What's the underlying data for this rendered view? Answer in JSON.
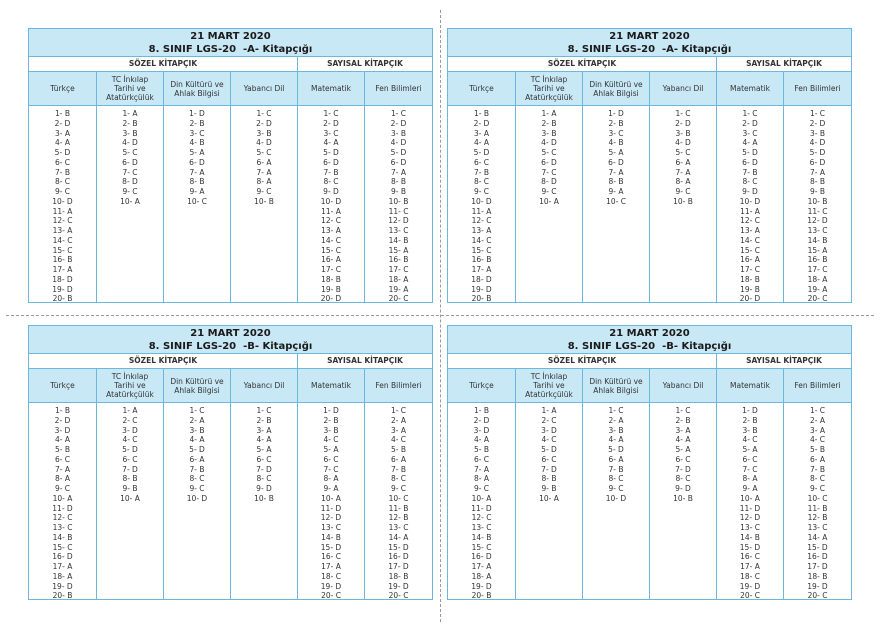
{
  "panels": [
    {
      "date": "21 MART 2020",
      "title": "8. SINIF LGS-20  -A- Kitapçığı",
      "sections": [
        "SÖZEL KİTAPÇIK",
        "SAYISAL KİTAPÇIK"
      ],
      "columns": [
        {
          "header": "Türkçe",
          "answers": [
            "1- B",
            "2- D",
            "3- A",
            "4- A",
            "5- D",
            "6- C",
            "7- B",
            "8- C",
            "9- C",
            "10- D",
            "11- A",
            "12- C",
            "13- A",
            "14- C",
            "15- C",
            "16- B",
            "17- A",
            "18- D",
            "19- D",
            "20- B"
          ]
        },
        {
          "header": "TC İnkılap Tarihi ve Atatürkçülük",
          "answers": [
            "1- A",
            "2- B",
            "3- B",
            "4- D",
            "5- C",
            "6- D",
            "7- C",
            "8- D",
            "9- C",
            "10- A"
          ]
        },
        {
          "header": "Din Kültürü ve Ahlak Bilgisi",
          "answers": [
            "1- D",
            "2- B",
            "3- C",
            "4- B",
            "5- A",
            "6- D",
            "7- A",
            "8- B",
            "9- A",
            "10- C"
          ]
        },
        {
          "header": "Yabancı Dil",
          "answers": [
            "1- C",
            "2- D",
            "3- B",
            "4- D",
            "5- C",
            "6- A",
            "7- A",
            "8- A",
            "9- C",
            "10- B"
          ]
        },
        {
          "header": "Matematik",
          "answers": [
            "1- C",
            "2- D",
            "3- C",
            "4- A",
            "5- D",
            "6- D",
            "7- B",
            "8- C",
            "9- D",
            "10- D",
            "11- A",
            "12- C",
            "13- A",
            "14- C",
            "15- C",
            "16- A",
            "17- C",
            "18- B",
            "19- B",
            "20- D"
          ]
        },
        {
          "header": "Fen Bilimleri",
          "answers": [
            "1- C",
            "2- D",
            "3- B",
            "4- D",
            "5- D",
            "6- D",
            "7- A",
            "8- B",
            "9- B",
            "10- B",
            "11- C",
            "12- D",
            "13- C",
            "14- B",
            "15- A",
            "16- B",
            "17- C",
            "18- A",
            "19- A",
            "20- C"
          ]
        }
      ]
    },
    {
      "date": "21 MART 2020",
      "title": "8. SINIF LGS-20  -A- Kitapçığı",
      "sections": [
        "SÖZEL KİTAPÇIK",
        "SAYISAL KİTAPÇIK"
      ],
      "columns": [
        {
          "header": "Türkçe",
          "answers": [
            "1- B",
            "2- D",
            "3- A",
            "4- A",
            "5- D",
            "6- C",
            "7- B",
            "8- C",
            "9- C",
            "10- D",
            "11- A",
            "12- C",
            "13- A",
            "14- C",
            "15- C",
            "16- B",
            "17- A",
            "18- D",
            "19- D",
            "20- B"
          ]
        },
        {
          "header": "TC İnkılap Tarihi ve Atatürkçülük",
          "answers": [
            "1- A",
            "2- B",
            "3- B",
            "4- D",
            "5- C",
            "6- D",
            "7- C",
            "8- D",
            "9- C",
            "10- A"
          ]
        },
        {
          "header": "Din Kültürü ve Ahlak Bilgisi",
          "answers": [
            "1- D",
            "2- B",
            "3- C",
            "4- B",
            "5- A",
            "6- D",
            "7- A",
            "8- B",
            "9- A",
            "10- C"
          ]
        },
        {
          "header": "Yabancı Dil",
          "answers": [
            "1- C",
            "2- D",
            "3- B",
            "4- D",
            "5- C",
            "6- A",
            "7- A",
            "8- A",
            "9- C",
            "10- B"
          ]
        },
        {
          "header": "Matematik",
          "answers": [
            "1- C",
            "2- D",
            "3- C",
            "4- A",
            "5- D",
            "6- D",
            "7- B",
            "8- C",
            "9- D",
            "10- D",
            "11- A",
            "12- C",
            "13- A",
            "14- C",
            "15- C",
            "16- A",
            "17- C",
            "18- B",
            "19- B",
            "20- D"
          ]
        },
        {
          "header": "Fen Bilimleri",
          "answers": [
            "1- C",
            "2- D",
            "3- B",
            "4- D",
            "5- D",
            "6- D",
            "7- A",
            "8- B",
            "9- B",
            "10- B",
            "11- C",
            "12- D",
            "13- C",
            "14- B",
            "15- A",
            "16- B",
            "17- C",
            "18- A",
            "19- A",
            "20- C"
          ]
        }
      ]
    },
    {
      "date": "21 MART 2020",
      "title": "8. SINIF LGS-20  -B- Kitapçığı",
      "sections": [
        "SÖZEL KİTAPÇIK",
        "SAYISAL KİTAPÇIK"
      ],
      "columns": [
        {
          "header": "Türkçe",
          "answers": [
            "1- B",
            "2- D",
            "3- D",
            "4- A",
            "5- B",
            "6- C",
            "7- A",
            "8- A",
            "9- C",
            "10- A",
            "11- D",
            "12- C",
            "13- C",
            "14- B",
            "15- C",
            "16- D",
            "17- A",
            "18- A",
            "19- D",
            "20- B"
          ]
        },
        {
          "header": "TC İnkılap Tarihi ve Atatürkçülük",
          "answers": [
            "1- A",
            "2- C",
            "3- D",
            "4- C",
            "5- D",
            "6- C",
            "7- D",
            "8- B",
            "9- B",
            "10- A"
          ]
        },
        {
          "header": "Din Kültürü ve Ahlak Bilgisi",
          "answers": [
            "1- C",
            "2- A",
            "3- B",
            "4- A",
            "5- D",
            "6- A",
            "7- B",
            "8- C",
            "9- C",
            "10- D"
          ]
        },
        {
          "header": "Yabancı Dil",
          "answers": [
            "1- C",
            "2- B",
            "3- A",
            "4- A",
            "5- A",
            "6- C",
            "7- D",
            "8- C",
            "9- D",
            "10- B"
          ]
        },
        {
          "header": "Matematik",
          "answers": [
            "1- D",
            "2- B",
            "3- B",
            "4- C",
            "5- A",
            "6- C",
            "7- C",
            "8- A",
            "9- A",
            "10- A",
            "11- D",
            "12- D",
            "13- C",
            "14- B",
            "15- D",
            "16- C",
            "17- A",
            "18- C",
            "19- D",
            "20- C"
          ]
        },
        {
          "header": "Fen Bilimleri",
          "answers": [
            "1- C",
            "2- A",
            "3- A",
            "4- C",
            "5- B",
            "6- A",
            "7- B",
            "8- C",
            "9- C",
            "10- C",
            "11- B",
            "12- B",
            "13- C",
            "14- A",
            "15- D",
            "16- D",
            "17- D",
            "18- B",
            "19- D",
            "20- C"
          ]
        }
      ]
    },
    {
      "date": "21 MART 2020",
      "title": "8. SINIF LGS-20  -B- Kitapçığı",
      "sections": [
        "SÖZEL KİTAPÇIK",
        "SAYISAL KİTAPÇIK"
      ],
      "columns": [
        {
          "header": "Türkçe",
          "answers": [
            "1- B",
            "2- D",
            "3- D",
            "4- A",
            "5- B",
            "6- C",
            "7- A",
            "8- A",
            "9- C",
            "10- A",
            "11- D",
            "12- C",
            "13- C",
            "14- B",
            "15- C",
            "16- D",
            "17- A",
            "18- A",
            "19- D",
            "20- B"
          ]
        },
        {
          "header": "TC İnkılap Tarihi ve Atatürkçülük",
          "answers": [
            "1- A",
            "2- C",
            "3- D",
            "4- C",
            "5- D",
            "6- C",
            "7- D",
            "8- B",
            "9- B",
            "10- A"
          ]
        },
        {
          "header": "Din Kültürü ve Ahlak Bilgisi",
          "answers": [
            "1- C",
            "2- A",
            "3- B",
            "4- A",
            "5- D",
            "6- A",
            "7- B",
            "8- C",
            "9- C",
            "10- D"
          ]
        },
        {
          "header": "Yabancı Dil",
          "answers": [
            "1- C",
            "2- B",
            "3- A",
            "4- A",
            "5- A",
            "6- C",
            "7- D",
            "8- C",
            "9- D",
            "10- B"
          ]
        },
        {
          "header": "Matematik",
          "answers": [
            "1- D",
            "2- B",
            "3- B",
            "4- C",
            "5- A",
            "6- C",
            "7- C",
            "8- A",
            "9- A",
            "10- A",
            "11- D",
            "12- D",
            "13- C",
            "14- B",
            "15- D",
            "16- C",
            "17- A",
            "18- C",
            "19- D",
            "20- C"
          ]
        },
        {
          "header": "Fen Bilimleri",
          "answers": [
            "1- C",
            "2- A",
            "3- A",
            "4- C",
            "5- B",
            "6- A",
            "7- B",
            "8- C",
            "9- C",
            "10- C",
            "11- B",
            "12- B",
            "13- C",
            "14- A",
            "15- D",
            "16- D",
            "17- D",
            "18- B",
            "19- D",
            "20- C"
          ]
        }
      ]
    }
  ]
}
